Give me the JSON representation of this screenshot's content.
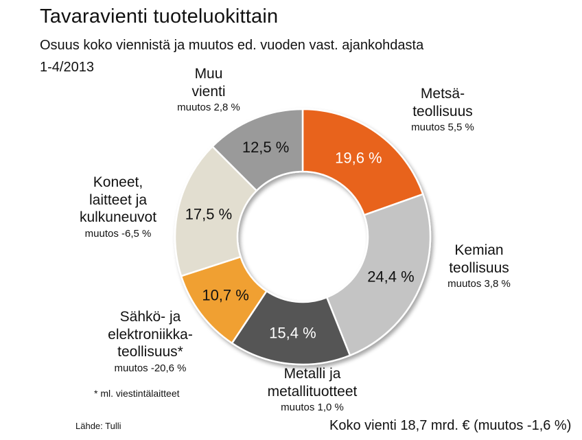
{
  "title": "Tavaravienti tuoteluokittain",
  "subtitle": "Osuus koko viennistä ja muutos ed. vuoden vast. ajankohdasta",
  "period": "1-4/2013",
  "footnote": "* ml. viestintälaitteet",
  "source": "Lähde: Tulli",
  "total": "Koko vienti 18,7 mrd. € (muutos -1,6 %)",
  "chart_data": {
    "type": "pie",
    "donut": true,
    "start": "top",
    "direction": "clockwise",
    "series": [
      {
        "name": "Metsä-\nteollisuus",
        "value": 19.6,
        "label": "19,6 %",
        "change": "muutos 5,5 %",
        "color": "#e8641c",
        "label_color": "#ffffff"
      },
      {
        "name": "Kemian\nteollisuus",
        "value": 24.4,
        "label": "24,4 %",
        "change": "muutos 3,8 %",
        "color": "#c4c4c4",
        "label_color": "#111111"
      },
      {
        "name": "Metalli ja\nmetallituotteet",
        "value": 15.4,
        "label": "15,4 %",
        "change": "muutos 1,0 %",
        "color": "#555555",
        "label_color": "#ffffff"
      },
      {
        "name": "Sähkö- ja\nelektroniikka-\nteollisuus*",
        "value": 10.7,
        "label": "10,7 %",
        "change": "muutos -20,6 %",
        "color": "#f0a030",
        "label_color": "#111111"
      },
      {
        "name": "Koneet,\nlaitteet ja\nkulkuneuvot",
        "value": 17.5,
        "label": "17,5 %",
        "change": "muutos -6,5 %",
        "color": "#e2ded0",
        "label_color": "#111111"
      },
      {
        "name": "Muu\nvienti",
        "value": 12.5,
        "label": "12,5 %",
        "change": "muutos 2,8 %",
        "color": "#9a9a9a",
        "label_color": "#111111"
      }
    ]
  }
}
